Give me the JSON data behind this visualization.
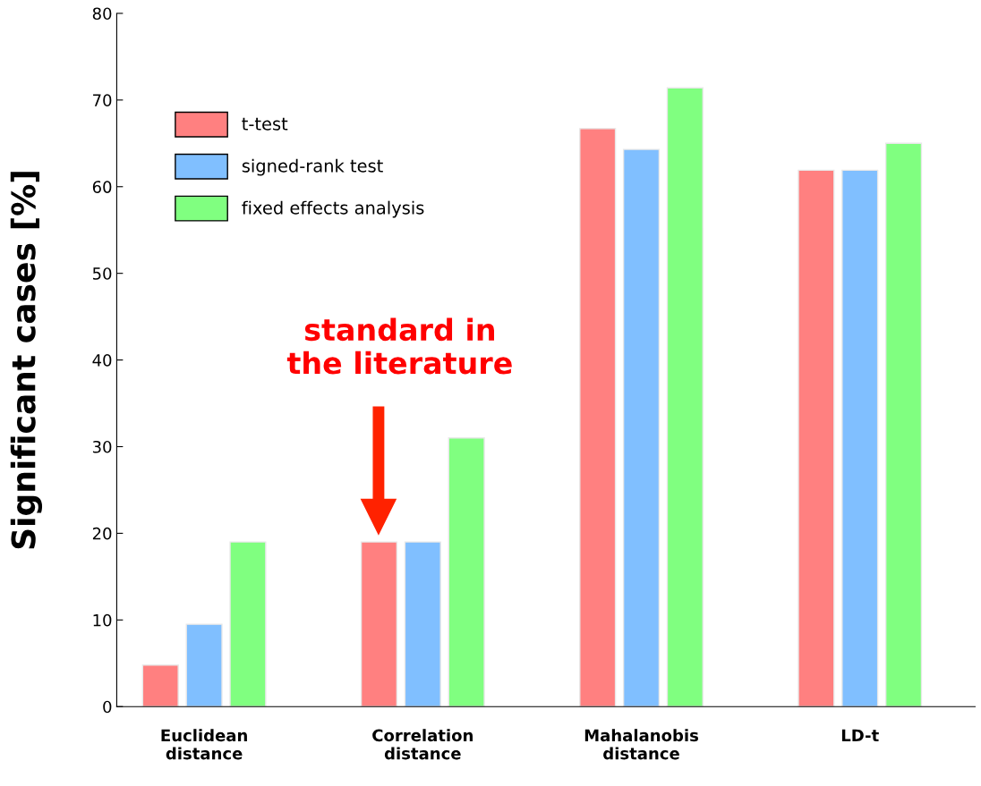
{
  "chart_data": {
    "type": "bar",
    "categories": [
      "Euclidean\ndistance",
      "Correlation\ndistance",
      "Mahalanobis\ndistance",
      "LD-t"
    ],
    "ylabel": "Significant cases [%]",
    "series": [
      {
        "name": "t-test",
        "color": "#ff8080",
        "values": [
          4.8,
          19.0,
          66.7,
          61.9
        ]
      },
      {
        "name": "signed-rank test",
        "color": "#80bfff",
        "values": [
          9.5,
          19.0,
          64.3,
          61.9
        ]
      },
      {
        "name": "fixed effects analysis",
        "color": "#80ff80",
        "values": [
          19.0,
          31.0,
          71.4,
          65.0
        ]
      }
    ],
    "ylim": [
      0,
      80
    ],
    "yticks": [
      0,
      10,
      20,
      30,
      40,
      50,
      60,
      70,
      80
    ],
    "grid": false,
    "legend": "top left",
    "annotations": [
      "standard in\nthe literature"
    ]
  }
}
